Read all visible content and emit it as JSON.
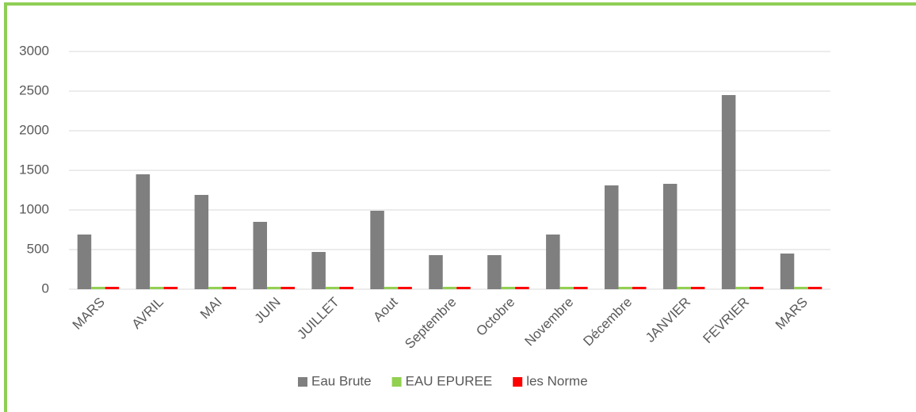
{
  "chart_data": {
    "type": "bar",
    "categories": [
      "MARS",
      "AVRIL",
      "MAI",
      "JUIN",
      "JUILLET",
      "Aout",
      "Septembre",
      "Octobre",
      "Novembre",
      "Décembre",
      "JANVIER",
      "FEVRIER",
      "MARS"
    ],
    "series": [
      {
        "name": "Eau Brute",
        "color": "#7f7f7f",
        "values": [
          690,
          1450,
          1190,
          850,
          470,
          990,
          430,
          430,
          690,
          1310,
          1330,
          2450,
          450
        ]
      },
      {
        "name": "EAU EPUREE",
        "color": "#92d050",
        "values": [
          30,
          30,
          30,
          30,
          30,
          30,
          30,
          30,
          30,
          30,
          30,
          30,
          30
        ]
      },
      {
        "name": "les Norme",
        "color": "#ff0000",
        "values": [
          30,
          30,
          30,
          30,
          30,
          30,
          30,
          30,
          30,
          30,
          30,
          30,
          30
        ]
      }
    ],
    "ylim": [
      0,
      3000
    ],
    "yticks": [
      0,
      500,
      1000,
      1500,
      2000,
      2500,
      3000
    ],
    "grid": true,
    "legend": "bottom"
  }
}
